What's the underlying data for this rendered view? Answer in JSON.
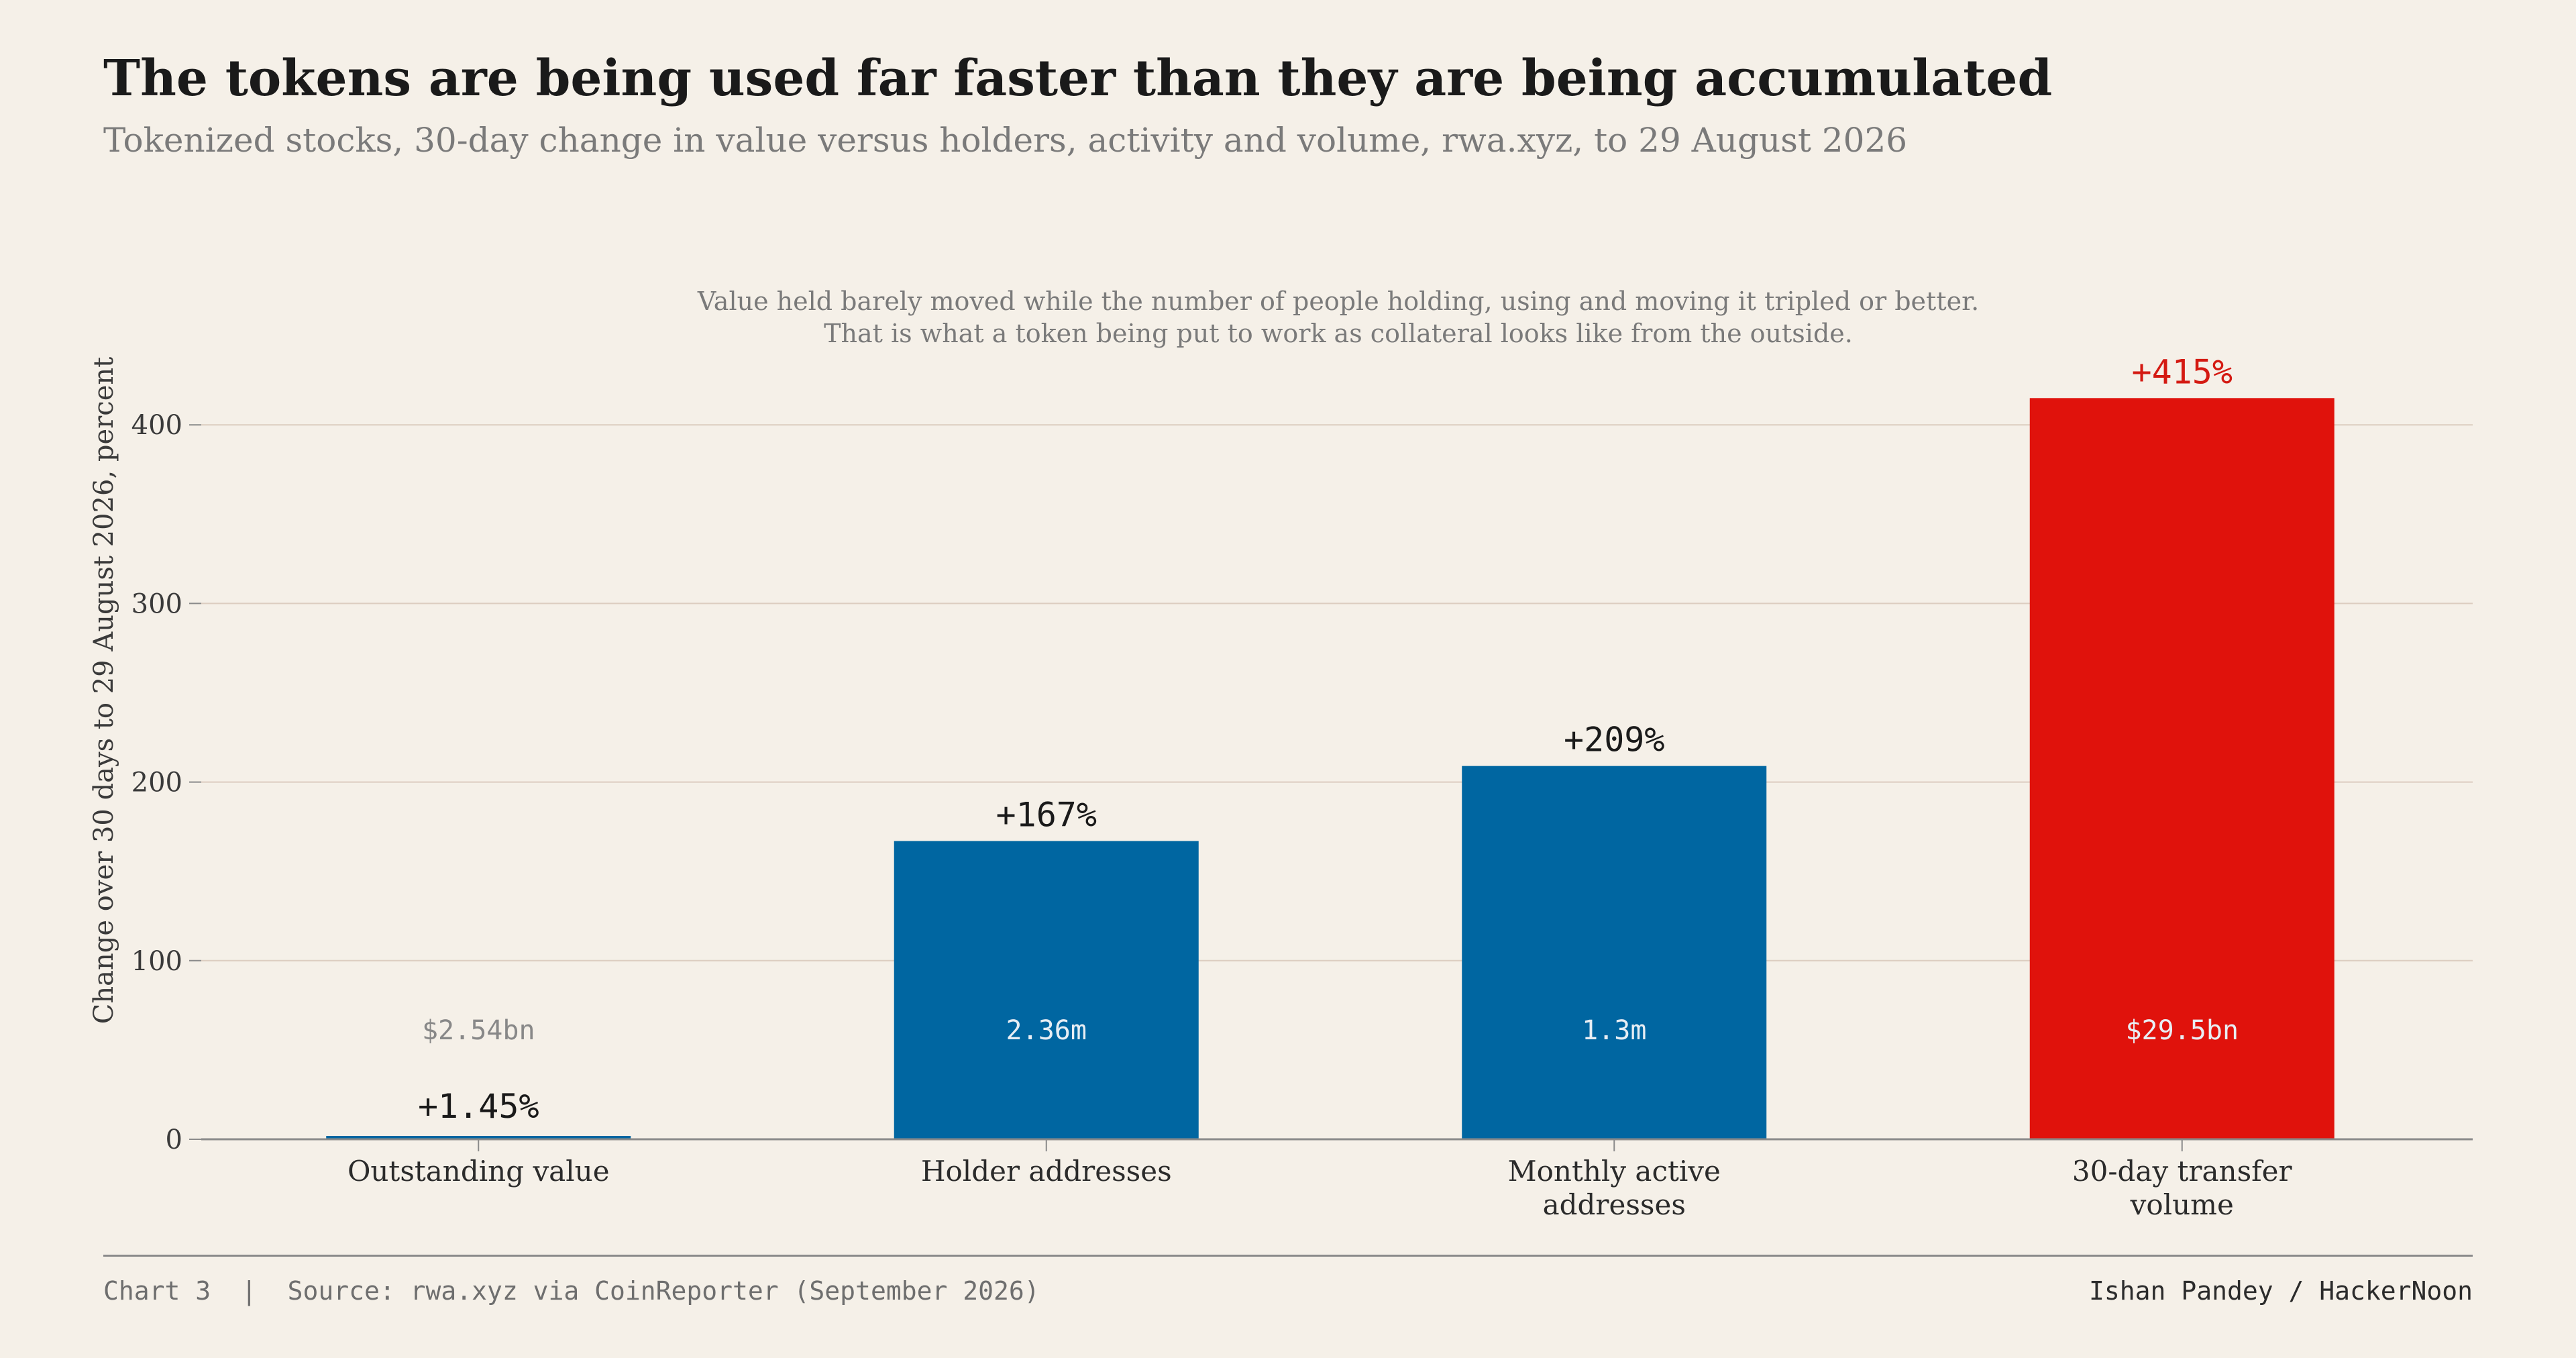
{
  "title": "The tokens are being used far faster than they are being accumulated",
  "subtitle": "Tokenized stocks, 30-day change in value versus holders, activity and volume, rwa.xyz, to 29 August 2026",
  "annotation_lines": [
    "Value held barely moved while the number of people holding, using and moving it tripled or better.",
    "That is what a token being put to work as collateral looks like from the outside."
  ],
  "footer": {
    "chart_label": "Chart 3",
    "separator": "|",
    "source": "Source: rwa.xyz via CoinReporter (September 2026)",
    "credit": "Ishan Pandey / HackerNoon"
  },
  "colors": {
    "background": "#f5f0e8",
    "bar_blue": "#0066a1",
    "bar_red": "#e0120c",
    "grid": "#dccdc0",
    "axis": "#8a8a8a",
    "highlight_label": "#d41a12"
  },
  "chart_data": {
    "type": "bar",
    "title": "The tokens are being used far faster than they are being accumulated",
    "subtitle": "Tokenized stocks, 30-day change in value versus holders, activity and volume, rwa.xyz, to 29 August 2026",
    "xlabel": "",
    "ylabel": "Change over 30 days to 29 August 2026, percent",
    "ylim": [
      0,
      420
    ],
    "yticks": [
      0,
      100,
      200,
      300,
      400
    ],
    "grid": true,
    "categories": [
      [
        "Outstanding value"
      ],
      [
        "Holder addresses"
      ],
      [
        "Monthly active",
        "addresses"
      ],
      [
        "30-day transfer",
        "volume"
      ]
    ],
    "values": [
      1.45,
      167,
      209,
      415
    ],
    "value_labels": [
      "+1.45%",
      "+167%",
      "+209%",
      "+415%"
    ],
    "inner_labels": [
      "$2.54bn",
      "2.36m",
      "1.3m",
      "$29.5bn"
    ],
    "highlight_index": 3
  }
}
